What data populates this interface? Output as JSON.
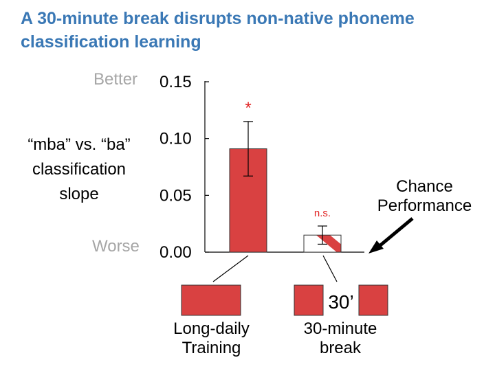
{
  "title": "A 30-minute break disrupts non-native phoneme classification learning",
  "y_axis_label": "“mba” vs. “ba” classification slope",
  "better_label": "Better",
  "worse_label": "Worse",
  "chance_label": "Chance Performance",
  "colors": {
    "bar": "#d94141",
    "significance": "#e02020",
    "title": "#3a78b5",
    "muted": "#a6a6a6"
  },
  "chart_data": {
    "type": "bar",
    "categories": [
      "Long-daily Training",
      "30-minute break"
    ],
    "values": [
      0.091,
      0.015
    ],
    "errors": [
      0.024,
      0.008
    ],
    "significance": [
      "*",
      "n.s."
    ],
    "ylim": [
      0,
      0.15
    ],
    "yticks": [
      "0.15",
      "0.10",
      "0.05",
      "0.00"
    ],
    "ytick_values": [
      0.15,
      0.1,
      0.05,
      0.0
    ]
  },
  "schedule_gap_label": "30’"
}
